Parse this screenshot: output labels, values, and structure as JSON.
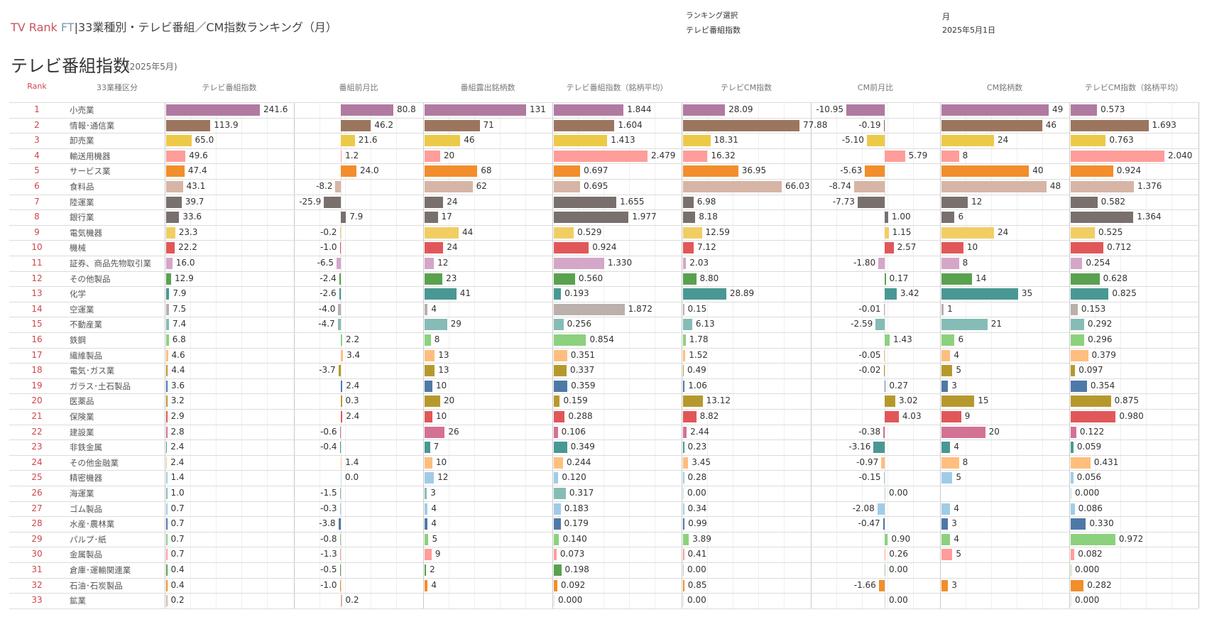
{
  "header": {
    "brand_tv": "TV Rank",
    "brand_ft": "FT",
    "separator": "|",
    "title": "33業種別・テレビ番組／CM指数ランキング（月）",
    "ranking_select_label": "ランキング選択",
    "ranking_select_value": "テレビ番組指数",
    "period_label": "月",
    "period_value": "2025年5月1日"
  },
  "section": {
    "title": "テレビ番組指数",
    "subtitle": "(2025年5月)"
  },
  "columns": {
    "rank": "Rank",
    "industry": "33業種区分",
    "metrics": [
      "テレビ番組指数",
      "番組前月比",
      "番組露出銘柄数",
      "テレビ番組指数（銘柄平均）",
      "テレビCM指数",
      "CM前月比",
      "CM銘柄数",
      "テレビCM指数（銘柄平均）"
    ]
  },
  "rows": [
    {
      "rank": "1",
      "industry": "小売業",
      "color": "#b07aa1",
      "values": [
        "241.6",
        "80.8",
        "131",
        "1.844",
        "28.09",
        "-10.95",
        "49",
        "0.573"
      ]
    },
    {
      "rank": "2",
      "industry": "情報･通信業",
      "color": "#9c755f",
      "values": [
        "113.9",
        "46.2",
        "71",
        "1.604",
        "77.88",
        "-0.19",
        "46",
        "1.693"
      ]
    },
    {
      "rank": "3",
      "industry": "卸売業",
      "color": "#edc948",
      "values": [
        "65.0",
        "21.6",
        "46",
        "1.413",
        "18.31",
        "-5.10",
        "24",
        "0.763"
      ]
    },
    {
      "rank": "4",
      "industry": "輸送用機器",
      "color": "#ff9d9a",
      "values": [
        "49.6",
        "1.2",
        "20",
        "2.479",
        "16.32",
        "5.79",
        "8",
        "2.040"
      ]
    },
    {
      "rank": "5",
      "industry": "サービス業",
      "color": "#f28e2b",
      "values": [
        "47.4",
        "24.0",
        "68",
        "0.697",
        "36.95",
        "-5.63",
        "40",
        "0.924"
      ]
    },
    {
      "rank": "6",
      "industry": "食料品",
      "color": "#d7b5a6",
      "values": [
        "43.1",
        "-8.2",
        "62",
        "0.695",
        "66.03",
        "-8.74",
        "48",
        "1.376"
      ]
    },
    {
      "rank": "7",
      "industry": "陸運業",
      "color": "#79706e",
      "values": [
        "39.7",
        "-25.9",
        "24",
        "1.655",
        "6.98",
        "-7.73",
        "12",
        "0.582"
      ]
    },
    {
      "rank": "8",
      "industry": "銀行業",
      "color": "#79706e",
      "values": [
        "33.6",
        "7.9",
        "17",
        "1.977",
        "8.18",
        "1.00",
        "6",
        "1.364"
      ]
    },
    {
      "rank": "9",
      "industry": "電気機器",
      "color": "#f1ce63",
      "values": [
        "23.3",
        "-0.2",
        "44",
        "0.529",
        "12.59",
        "1.15",
        "24",
        "0.525"
      ]
    },
    {
      "rank": "10",
      "industry": "機械",
      "color": "#e15759",
      "values": [
        "22.2",
        "-1.0",
        "24",
        "0.924",
        "7.12",
        "2.57",
        "10",
        "0.712"
      ]
    },
    {
      "rank": "11",
      "industry": "証券、商品先物取引業",
      "color": "#d4a6c8",
      "values": [
        "16.0",
        "-6.5",
        "12",
        "1.330",
        "2.03",
        "-1.80",
        "8",
        "0.254"
      ]
    },
    {
      "rank": "12",
      "industry": "その他製品",
      "color": "#59a14f",
      "values": [
        "12.9",
        "-2.4",
        "23",
        "0.560",
        "8.80",
        "0.17",
        "14",
        "0.628"
      ]
    },
    {
      "rank": "13",
      "industry": "化学",
      "color": "#499894",
      "values": [
        "7.9",
        "-2.6",
        "41",
        "0.193",
        "28.89",
        "3.42",
        "35",
        "0.825"
      ]
    },
    {
      "rank": "14",
      "industry": "空運業",
      "color": "#bab0ac",
      "values": [
        "7.5",
        "-4.0",
        "4",
        "1.872",
        "0.15",
        "-0.01",
        "1",
        "0.153"
      ]
    },
    {
      "rank": "15",
      "industry": "不動産業",
      "color": "#86bcb6",
      "values": [
        "7.4",
        "-4.7",
        "29",
        "0.256",
        "6.13",
        "-2.59",
        "21",
        "0.292"
      ]
    },
    {
      "rank": "16",
      "industry": "鉄鋼",
      "color": "#8cd17d",
      "values": [
        "6.8",
        "2.2",
        "8",
        "0.854",
        "1.78",
        "1.43",
        "6",
        "0.296"
      ]
    },
    {
      "rank": "17",
      "industry": "繊維製品",
      "color": "#ffbe7d",
      "values": [
        "4.6",
        "3.4",
        "13",
        "0.351",
        "1.52",
        "-0.05",
        "4",
        "0.379"
      ]
    },
    {
      "rank": "18",
      "industry": "電気･ガス業",
      "color": "#b6992d",
      "values": [
        "4.4",
        "-3.7",
        "13",
        "0.337",
        "0.49",
        "-0.02",
        "5",
        "0.097"
      ]
    },
    {
      "rank": "19",
      "industry": "ガラス･土石製品",
      "color": "#4e79a7",
      "values": [
        "3.6",
        "2.4",
        "10",
        "0.359",
        "1.06",
        "0.27",
        "3",
        "0.354"
      ]
    },
    {
      "rank": "20",
      "industry": "医薬品",
      "color": "#b6992d",
      "values": [
        "3.2",
        "0.3",
        "20",
        "0.159",
        "13.12",
        "3.02",
        "15",
        "0.875"
      ]
    },
    {
      "rank": "21",
      "industry": "保険業",
      "color": "#e15759",
      "values": [
        "2.9",
        "2.4",
        "10",
        "0.288",
        "8.82",
        "4.03",
        "9",
        "0.980"
      ]
    },
    {
      "rank": "22",
      "industry": "建設業",
      "color": "#d37295",
      "values": [
        "2.8",
        "-0.6",
        "26",
        "0.106",
        "2.44",
        "-0.38",
        "20",
        "0.122"
      ]
    },
    {
      "rank": "23",
      "industry": "非鉄金属",
      "color": "#499894",
      "values": [
        "2.4",
        "-0.4",
        "7",
        "0.349",
        "0.23",
        "-3.16",
        "4",
        "0.059"
      ]
    },
    {
      "rank": "24",
      "industry": "その他金融業",
      "color": "#ffbe7d",
      "values": [
        "2.4",
        "1.4",
        "10",
        "0.244",
        "3.45",
        "-0.97",
        "8",
        "0.431"
      ]
    },
    {
      "rank": "25",
      "industry": "精密機器",
      "color": "#a0cbe8",
      "values": [
        "1.4",
        "0.0",
        "12",
        "0.120",
        "0.28",
        "-0.15",
        "5",
        "0.056"
      ]
    },
    {
      "rank": "26",
      "industry": "海運業",
      "color": "#86bcb6",
      "values": [
        "1.0",
        "-1.5",
        "3",
        "0.317",
        "0.00",
        "0.00",
        null,
        "0.000"
      ]
    },
    {
      "rank": "27",
      "industry": "ゴム製品",
      "color": "#a0cbe8",
      "values": [
        "0.7",
        "-0.3",
        "4",
        "0.183",
        "0.34",
        "-2.08",
        "4",
        "0.086"
      ]
    },
    {
      "rank": "28",
      "industry": "水産･農林業",
      "color": "#4e79a7",
      "values": [
        "0.7",
        "-3.8",
        "4",
        "0.179",
        "0.99",
        "-0.47",
        "3",
        "0.330"
      ]
    },
    {
      "rank": "29",
      "industry": "パルプ･紙",
      "color": "#8cd17d",
      "values": [
        "0.7",
        "-0.8",
        "5",
        "0.140",
        "3.89",
        "0.90",
        "4",
        "0.972"
      ]
    },
    {
      "rank": "30",
      "industry": "金属製品",
      "color": "#ff9d9a",
      "values": [
        "0.7",
        "-1.3",
        "9",
        "0.073",
        "0.41",
        "0.26",
        "5",
        "0.082"
      ]
    },
    {
      "rank": "31",
      "industry": "倉庫･運輸関連業",
      "color": "#59a14f",
      "values": [
        "0.4",
        "-0.5",
        "2",
        "0.198",
        "0.00",
        "0.00",
        null,
        "0.000"
      ]
    },
    {
      "rank": "32",
      "industry": "石油･石炭製品",
      "color": "#f28e2b",
      "values": [
        "0.4",
        "-1.0",
        "4",
        "0.092",
        "0.85",
        "-1.66",
        "3",
        "0.282"
      ]
    },
    {
      "rank": "33",
      "industry": "鉱業",
      "color": "#d7b5a6",
      "values": [
        "0.2",
        "0.2",
        null,
        "0.000",
        "0.00",
        "0.00",
        null,
        "0.000"
      ]
    }
  ]
}
